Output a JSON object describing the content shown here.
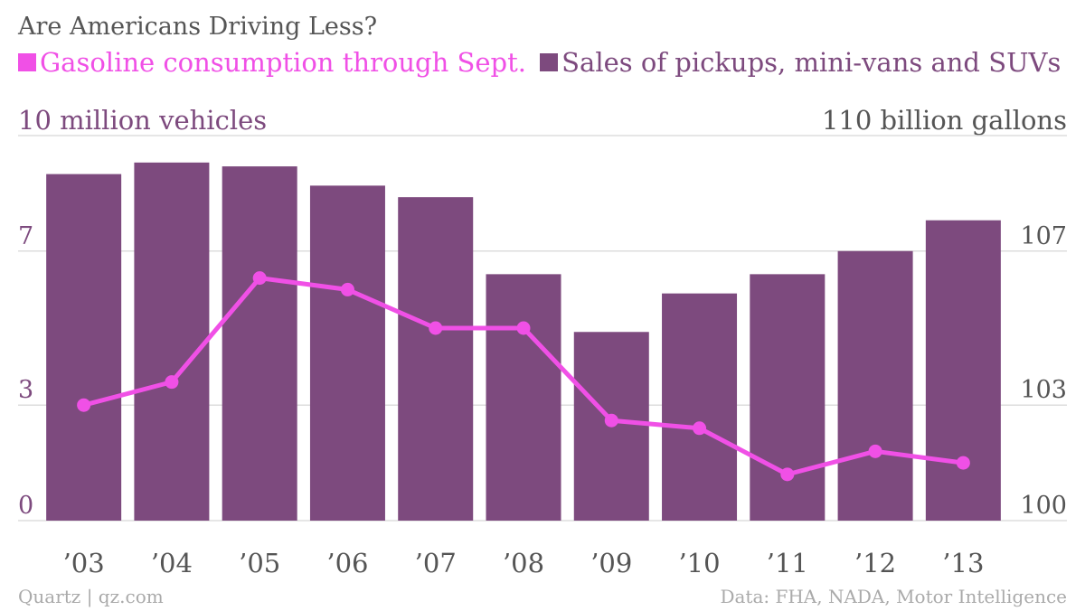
{
  "title": "Are Americans Driving Less?",
  "legend": [
    {
      "label": "Gasoline consumption through Sept.",
      "color": "#f050e6"
    },
    {
      "label": "Sales of pickups, mini-vans and SUVs",
      "color": "#7d4a7e"
    }
  ],
  "left_axis_label": "10 million vehicles",
  "right_axis_label": "110 billion gallons",
  "source_left": "Quartz | qz.com",
  "source_right": "Data: FHA, NADA, Motor Intelligence",
  "chart_data": {
    "type": "bar",
    "categories": [
      "’03",
      "’04",
      "’05",
      "’06",
      "’07",
      "’08",
      "’09",
      "’10",
      "’11",
      "’12",
      "’13"
    ],
    "series": [
      {
        "name": "Sales of pickups, mini-vans and SUVs",
        "chart_type": "bar",
        "axis": "left",
        "color": "#7d4a7e",
        "values": [
          9.0,
          9.3,
          9.2,
          8.7,
          8.4,
          6.4,
          4.9,
          5.9,
          6.4,
          7.0,
          7.8
        ]
      },
      {
        "name": "Gasoline consumption through Sept.",
        "chart_type": "line",
        "axis": "right",
        "color": "#f050e6",
        "values": [
          103.0,
          103.6,
          106.3,
          106.0,
          105.0,
          105.0,
          102.6,
          102.4,
          101.2,
          101.8,
          101.5
        ]
      }
    ],
    "left_axis": {
      "label": "10 million vehicles",
      "ticks": [
        0,
        3,
        7,
        10
      ],
      "range": [
        0,
        10
      ]
    },
    "right_axis": {
      "label": "110 billion gallons",
      "ticks": [
        100,
        103,
        107,
        110
      ],
      "range": [
        100,
        110
      ]
    },
    "grid": true
  }
}
